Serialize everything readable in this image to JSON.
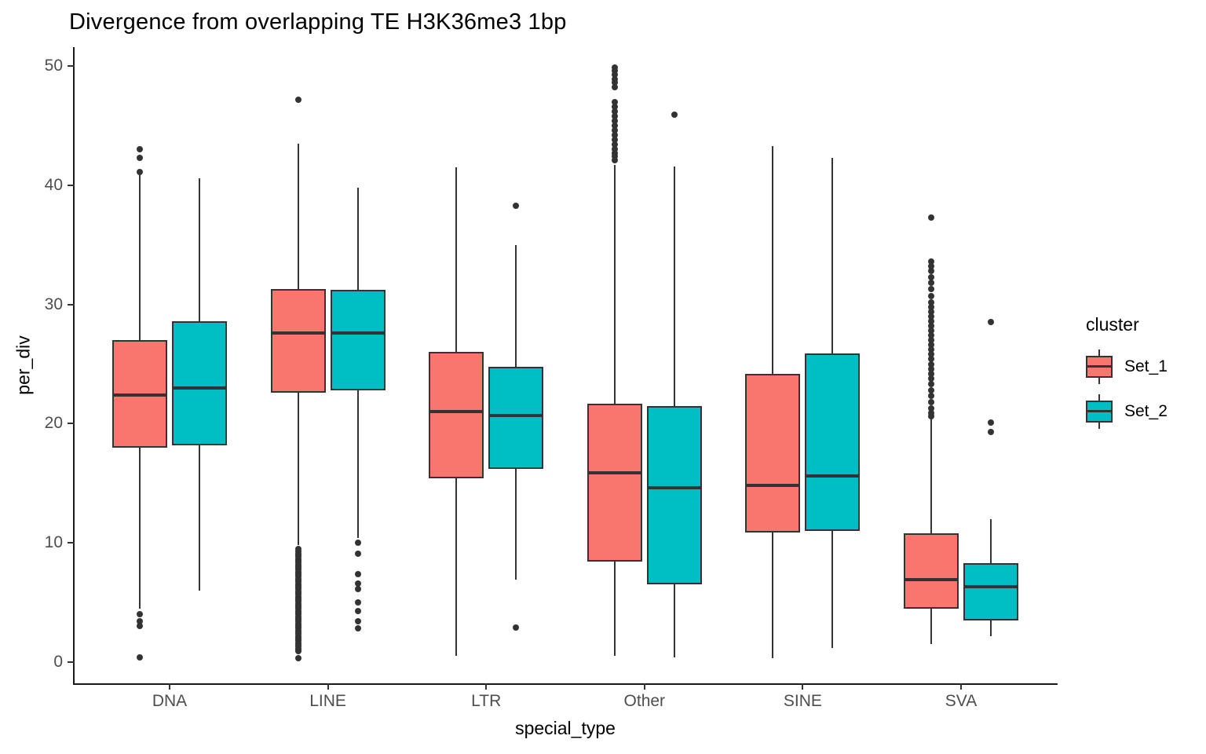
{
  "title": "Divergence from overlapping TE H3K36me3 1bp",
  "x_axis": {
    "label": "special_type",
    "categories": [
      "DNA",
      "LINE",
      "LTR",
      "Other",
      "SINE",
      "SVA"
    ]
  },
  "y_axis": {
    "label": "per_div",
    "ticks": [
      0,
      10,
      20,
      30,
      40,
      50
    ],
    "range": [
      -1.8,
      51.6
    ]
  },
  "legend": {
    "title": "cluster",
    "entries": [
      {
        "label": "Set_1",
        "color": "#F8766D"
      },
      {
        "label": "Set_2",
        "color": "#00BFC4"
      }
    ]
  },
  "colors": {
    "set1_fill": "#F8766D",
    "set2_fill": "#00BFC4",
    "outline": "#333333",
    "axis_text": "#4D4D4D",
    "axis_line": "#1a1a1a",
    "background": "#ffffff"
  },
  "chart_data": {
    "type": "boxplot",
    "title": "Divergence from overlapping TE H3K36me3 1bp",
    "xlabel": "special_type",
    "ylabel": "per_div",
    "ylim": [
      -1.8,
      51.6
    ],
    "yticks": [
      0,
      10,
      20,
      30,
      40,
      50
    ],
    "grid": false,
    "legend_position": "right",
    "categories": [
      "DNA",
      "LINE",
      "LTR",
      "Other",
      "SINE",
      "SVA"
    ],
    "series": [
      {
        "name": "Set_1",
        "color": "#F8766D",
        "boxes": [
          {
            "category": "DNA",
            "whisker_low": 4.5,
            "q1": 18.0,
            "median": 22.4,
            "q3": 27.0,
            "whisker_high": 40.9,
            "outliers_high": [
              43.0,
              42.3,
              41.1
            ],
            "outliers_low": [
              4.0,
              3.4,
              3.0,
              0.4
            ]
          },
          {
            "category": "LINE",
            "whisker_low": 9.8,
            "q1": 22.6,
            "median": 27.6,
            "q3": 31.3,
            "whisker_high": 43.5,
            "outliers_high": [
              47.2
            ],
            "outliers_low": [
              9.5,
              9.3,
              9.1,
              8.95,
              8.8,
              8.65,
              8.5,
              8.35,
              8.2,
              8.05,
              7.9,
              7.75,
              7.6,
              7.45,
              7.3,
              7.15,
              7.0,
              6.85,
              6.7,
              6.55,
              6.4,
              6.25,
              6.1,
              5.95,
              5.8,
              5.65,
              5.5,
              5.35,
              5.2,
              5.05,
              4.9,
              4.75,
              4.6,
              4.45,
              4.3,
              4.15,
              4.0,
              3.85,
              3.7,
              3.55,
              3.4,
              3.25,
              3.1,
              2.95,
              2.8,
              2.65,
              2.5,
              2.35,
              2.2,
              2.05,
              1.9,
              1.75,
              1.6,
              1.45,
              1.3,
              1.15,
              1.0,
              0.9,
              0.3
            ]
          },
          {
            "category": "LTR",
            "whisker_low": 0.5,
            "q1": 15.4,
            "median": 21.0,
            "q3": 26.0,
            "whisker_high": 41.5,
            "outliers_high": [],
            "outliers_low": []
          },
          {
            "category": "Other",
            "whisker_low": 0.5,
            "q1": 8.4,
            "median": 15.9,
            "q3": 21.7,
            "whisker_high": 41.7,
            "outliers_high": [
              49.9,
              49.6,
              49.3,
              48.9,
              48.6,
              48.2,
              47.0,
              46.6,
              46.2,
              45.8,
              45.4,
              45.0,
              44.6,
              44.2,
              43.8,
              43.4,
              43.0,
              42.7,
              42.4,
              42.1
            ],
            "outliers_low": []
          },
          {
            "category": "SINE",
            "whisker_low": 0.3,
            "q1": 10.9,
            "median": 14.8,
            "q3": 24.2,
            "whisker_high": 43.3,
            "outliers_high": [],
            "outliers_low": []
          },
          {
            "category": "SVA",
            "whisker_low": 1.5,
            "q1": 4.5,
            "median": 6.9,
            "q3": 10.8,
            "whisker_high": 20.4,
            "outliers_high": [
              37.3,
              33.6,
              33.2,
              32.8,
              32.3,
              31.8,
              31.3,
              30.7,
              30.2,
              29.8,
              29.4,
              29.0,
              28.6,
              28.2,
              27.8,
              27.4,
              27.0,
              26.6,
              26.2,
              25.8,
              25.4,
              25.0,
              24.6,
              24.2,
              23.8,
              23.3,
              22.8,
              22.3,
              21.8,
              21.3,
              20.9,
              20.6
            ],
            "outliers_low": []
          }
        ]
      },
      {
        "name": "Set_2",
        "color": "#00BFC4",
        "boxes": [
          {
            "category": "DNA",
            "whisker_low": 6.0,
            "q1": 18.2,
            "median": 23.0,
            "q3": 28.6,
            "whisker_high": 40.6,
            "outliers_high": [],
            "outliers_low": []
          },
          {
            "category": "LINE",
            "whisker_low": 10.4,
            "q1": 22.8,
            "median": 27.6,
            "q3": 31.2,
            "whisker_high": 39.8,
            "outliers_high": [],
            "outliers_low": [
              10.0,
              9.1,
              7.4,
              6.6,
              6.1,
              5.0,
              4.3,
              3.4,
              2.8
            ]
          },
          {
            "category": "LTR",
            "whisker_low": 6.9,
            "q1": 16.2,
            "median": 20.7,
            "q3": 24.8,
            "whisker_high": 35.0,
            "outliers_high": [
              38.3
            ],
            "outliers_low": [
              2.9
            ]
          },
          {
            "category": "Other",
            "whisker_low": 0.4,
            "q1": 6.5,
            "median": 14.6,
            "q3": 21.5,
            "whisker_high": 41.6,
            "outliers_high": [
              45.9
            ],
            "outliers_low": []
          },
          {
            "category": "SINE",
            "whisker_low": 1.2,
            "q1": 11.0,
            "median": 15.6,
            "q3": 25.9,
            "whisker_high": 42.3,
            "outliers_high": [],
            "outliers_low": []
          },
          {
            "category": "SVA",
            "whisker_low": 2.2,
            "q1": 3.5,
            "median": 6.3,
            "q3": 8.3,
            "whisker_high": 12.0,
            "outliers_high": [
              28.5,
              20.1,
              19.3
            ],
            "outliers_low": []
          }
        ]
      }
    ]
  }
}
